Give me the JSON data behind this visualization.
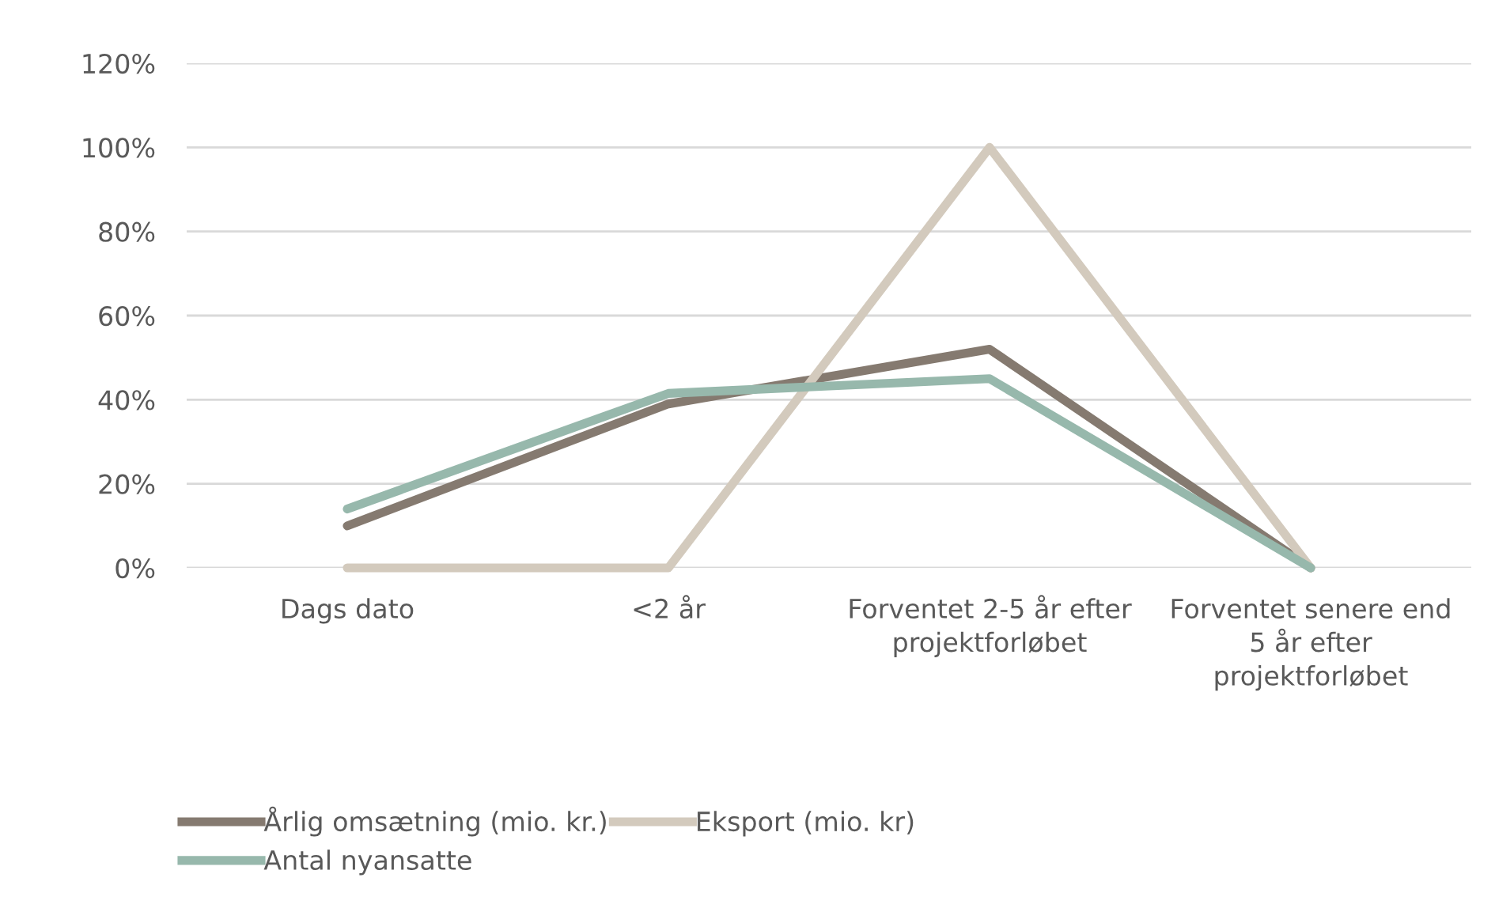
{
  "chart_data": {
    "type": "line",
    "categories": [
      "Dags dato",
      "<2 år",
      "Forventet 2-5 år efter projektforløbet",
      "Forventet senere end 5 år efter projektforløbet"
    ],
    "series": [
      {
        "name": "Årlig omsætning (mio. kr.)",
        "color": "#857a70",
        "values": [
          10,
          39,
          52,
          0
        ]
      },
      {
        "name": "Eksport (mio. kr)",
        "color": "#d3cabd",
        "values": [
          0,
          0,
          100,
          0
        ]
      },
      {
        "name": "Antal nyansatte",
        "color": "#97b8ac",
        "values": [
          14,
          41.5,
          45,
          0
        ]
      }
    ],
    "ylim": [
      0,
      120
    ],
    "yticks": [
      {
        "value": 0,
        "label": "0%"
      },
      {
        "value": 20,
        "label": "20%"
      },
      {
        "value": 40,
        "label": "40%"
      },
      {
        "value": 60,
        "label": "60%"
      },
      {
        "value": 80,
        "label": "80%"
      },
      {
        "value": 100,
        "label": "100%"
      },
      {
        "value": 120,
        "label": "120%"
      }
    ],
    "grid": "y",
    "legend": "bottom",
    "marker": "none",
    "line_style": "solid"
  }
}
